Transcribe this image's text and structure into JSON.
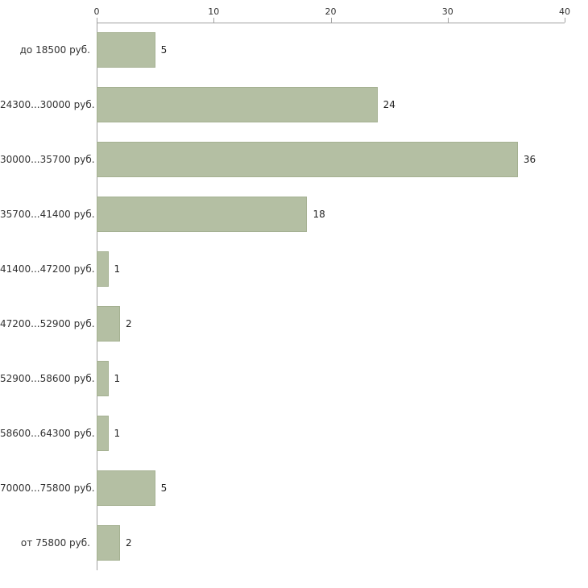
{
  "chart_data": {
    "type": "bar",
    "orientation": "horizontal",
    "title": "",
    "xlabel": "",
    "ylabel": "",
    "xlim": [
      0,
      40
    ],
    "x_ticks": [
      0,
      10,
      20,
      30,
      40
    ],
    "grid": false,
    "legend": "none",
    "categories": [
      "до 18500 руб.",
      "24300...30000 руб.",
      "30000...35700 руб.",
      "35700...41400 руб.",
      "41400...47200 руб.",
      "47200...52900 руб.",
      "52900...58600 руб.",
      "58600...64300 руб.",
      "70000...75800 руб.",
      "от 75800 руб."
    ],
    "values": [
      5,
      24,
      36,
      18,
      1,
      2,
      1,
      1,
      5,
      2
    ],
    "value_labels": [
      "5",
      "24",
      "36",
      "18",
      "1",
      "2",
      "1",
      "1",
      "5",
      "2"
    ],
    "colors": {
      "bar_fill": "#b4bfa3",
      "bar_border": "#a5b192",
      "axis_line": "#a0a0a0",
      "tick_text": "#333333",
      "label_text": "#333333",
      "background": "#ffffff"
    }
  }
}
